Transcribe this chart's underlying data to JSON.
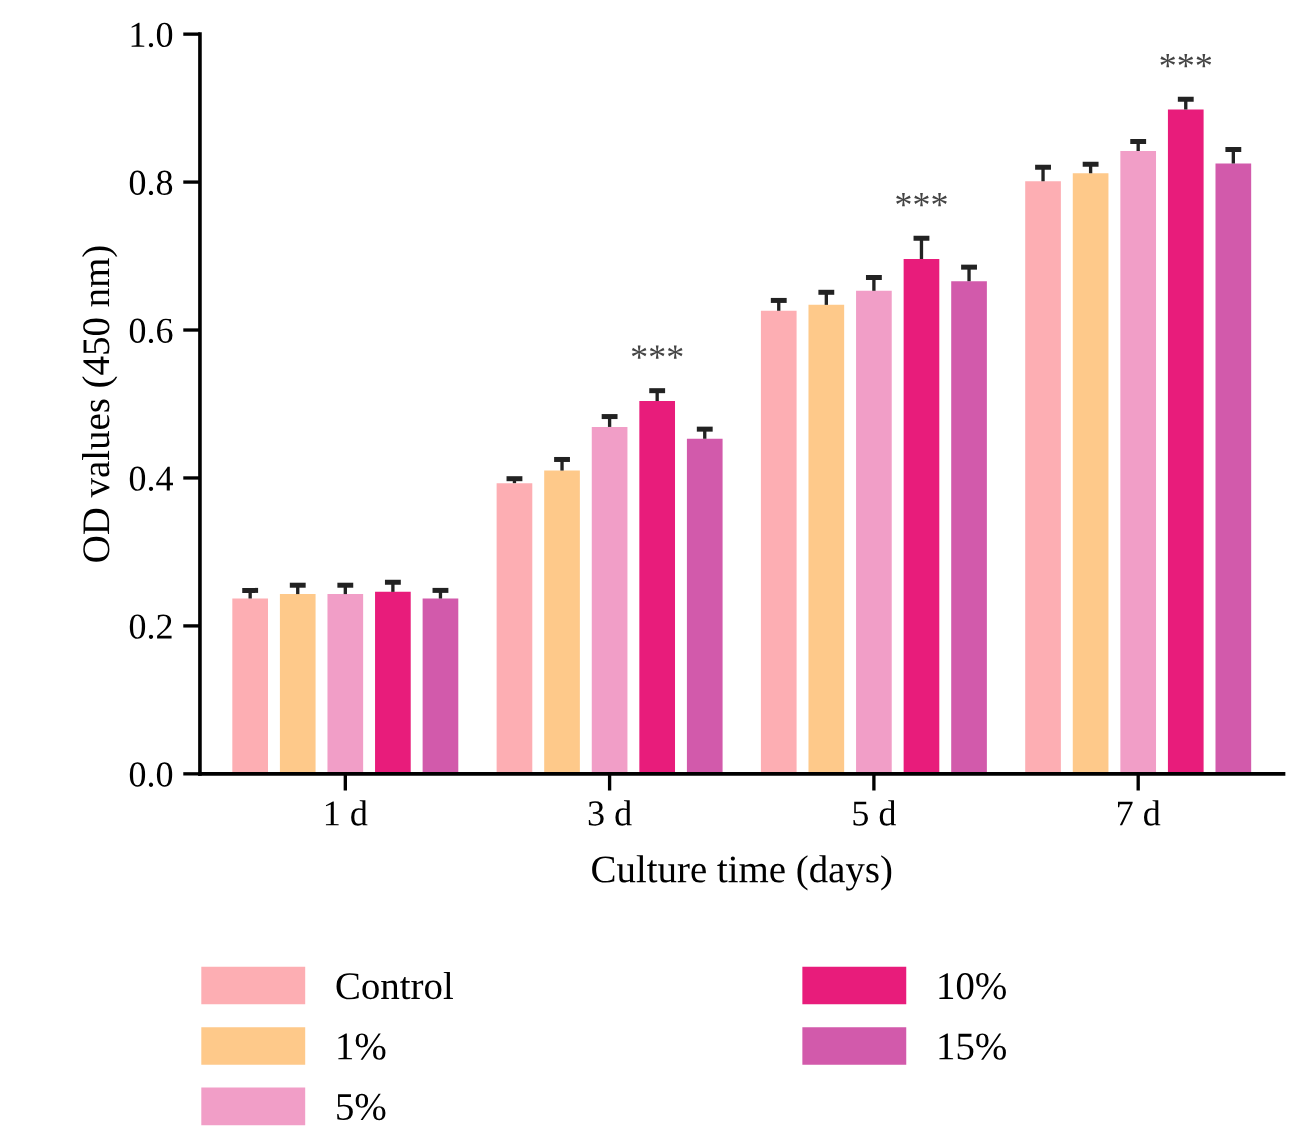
{
  "chart_data": {
    "type": "bar",
    "xlabel": "Culture time (days)",
    "ylabel": "OD values (450 nm)",
    "categories": [
      "1 d",
      "3 d",
      "5 d",
      "7 d"
    ],
    "series": [
      {
        "name": "Control",
        "color": "#fdaeb3",
        "values": [
          0.237,
          0.393,
          0.626,
          0.801
        ],
        "errors": [
          [
            0.237,
            0.248
          ],
          [
            0.393,
            0.399
          ],
          [
            0.626,
            0.64
          ],
          [
            0.801,
            0.82
          ]
        ]
      },
      {
        "name": "1%",
        "color": "#fec98a",
        "values": [
          0.243,
          0.41,
          0.634,
          0.812
        ],
        "errors": [
          [
            0.243,
            0.255
          ],
          [
            0.41,
            0.425
          ],
          [
            0.634,
            0.651
          ],
          [
            0.812,
            0.824
          ]
        ]
      },
      {
        "name": "5%",
        "color": "#f19ec7",
        "values": [
          0.243,
          0.469,
          0.653,
          0.842
        ],
        "errors": [
          [
            0.243,
            0.255
          ],
          [
            0.469,
            0.483
          ],
          [
            0.653,
            0.671
          ],
          [
            0.842,
            0.855
          ]
        ]
      },
      {
        "name": "10%",
        "color": "#e81c7b",
        "values": [
          0.246,
          0.504,
          0.696,
          0.898
        ],
        "errors": [
          [
            0.246,
            0.259
          ],
          [
            0.504,
            0.518
          ],
          [
            0.696,
            0.724
          ],
          [
            0.898,
            0.912
          ]
        ]
      },
      {
        "name": "15%",
        "color": "#d25aab",
        "values": [
          0.237,
          0.453,
          0.666,
          0.825
        ],
        "errors": [
          [
            0.237,
            0.248
          ],
          [
            0.453,
            0.466
          ],
          [
            0.666,
            0.685
          ],
          [
            0.825,
            0.844
          ]
        ]
      }
    ],
    "annotations": [
      "***",
      "***",
      "***"
    ],
    "ylim": [
      0,
      1.0
    ],
    "yticks": [
      {
        "value": 0,
        "label": "0.0"
      },
      {
        "value": 0.2,
        "label": "0.2"
      },
      {
        "value": 0.4,
        "label": "0.4"
      },
      {
        "value": 0.6,
        "label": "0.6"
      },
      {
        "value": 0.8,
        "label": "0.8"
      },
      {
        "value": 1.0,
        "label": "1.0"
      }
    ],
    "grid": false,
    "legend": "bottom"
  }
}
